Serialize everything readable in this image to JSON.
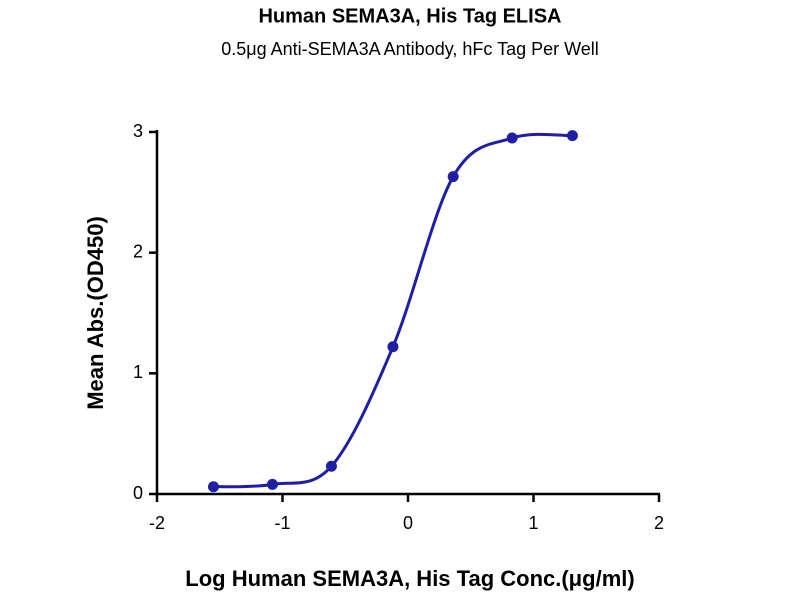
{
  "chart_data": {
    "type": "line",
    "title": "Human SEMA3A, His Tag ELISA",
    "subtitle": "0.5μg Anti-SEMA3A Antibody, hFc Tag Per Well",
    "x_label": "Log Human SEMA3A, His Tag Conc.(μg/ml)",
    "y_label": "Mean Abs.(OD450)",
    "x": [
      -1.55,
      -1.08,
      -0.61,
      -0.12,
      0.36,
      0.83,
      1.31
    ],
    "values": [
      0.06,
      0.08,
      0.23,
      1.22,
      2.63,
      2.95,
      2.97
    ],
    "color": "#1f1fa6",
    "xlim": [
      -2,
      2
    ],
    "xticks": [
      -2,
      -1,
      0,
      1,
      2
    ],
    "ylim": [
      0,
      3
    ],
    "yticks": [
      0,
      1,
      2,
      3
    ]
  }
}
